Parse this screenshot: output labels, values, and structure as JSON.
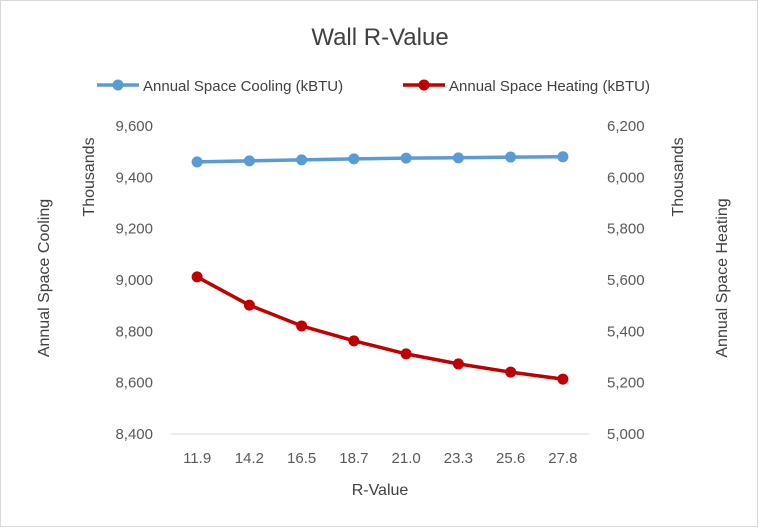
{
  "chart_data": {
    "type": "line",
    "title": "Wall R-Value",
    "xlabel": "R-Value",
    "categories": [
      "11.9",
      "14.2",
      "16.5",
      "18.7",
      "21.0",
      "23.3",
      "25.6",
      "27.8"
    ],
    "series": [
      {
        "name": "Annual Space Cooling (kBTU)",
        "axis": "left",
        "color": "#5b9bd5",
        "values": [
          9460,
          9464,
          9468,
          9472,
          9475,
          9476,
          9479,
          9480
        ]
      },
      {
        "name": "Annual Space Heating (kBTU)",
        "axis": "right",
        "color": "#c00000",
        "values": [
          5612,
          5502,
          5421,
          5363,
          5312,
          5273,
          5241,
          5214
        ]
      }
    ],
    "y_left": {
      "title": "Annual Space Cooling",
      "units_label": "Thousands",
      "ylim": [
        8400,
        9600
      ],
      "ticks": [
        "9,600",
        "9,400",
        "9,200",
        "9,000",
        "8,800",
        "8,600",
        "8,400"
      ]
    },
    "y_right": {
      "title": "Annual Space Heating",
      "units_label": "Thousands",
      "ylim": [
        5000,
        6200
      ],
      "ticks": [
        "6,200",
        "6,000",
        "5,800",
        "5,600",
        "5,400",
        "5,200",
        "5,000"
      ]
    },
    "legend_position": "top",
    "grid": false
  }
}
